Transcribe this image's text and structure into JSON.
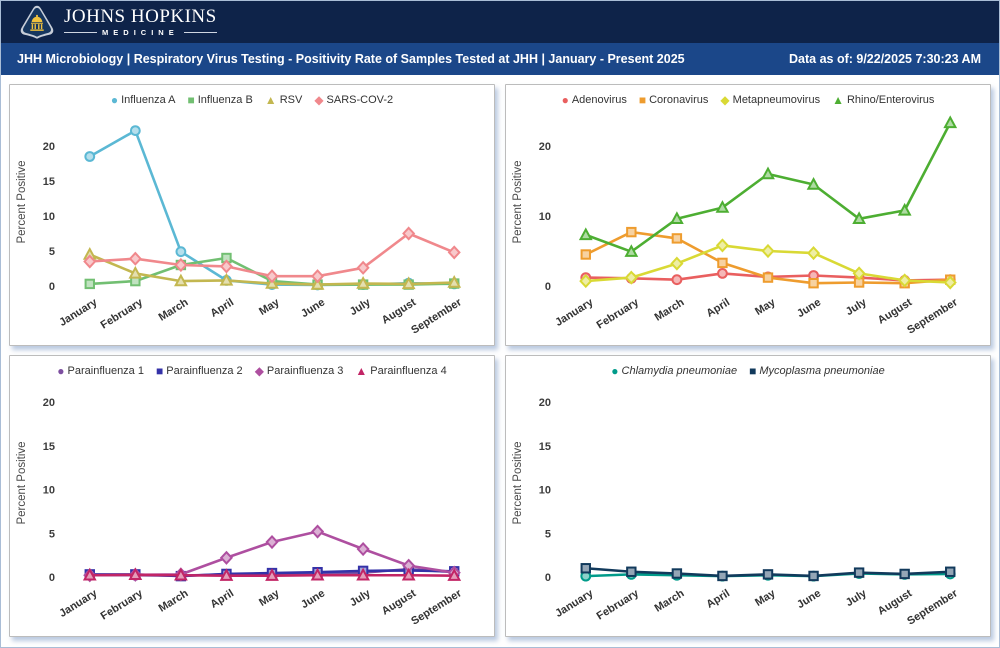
{
  "header": {
    "brand_line1": "JOHNS HOPKINS",
    "brand_line2": "MEDICINE",
    "title": "JHH Microbiology | Respiratory Virus Testing - Positivity Rate of Samples Tested at JHH | January - Present 2025",
    "data_as_of": "Data as of: 9/22/2025 7:30:23 AM",
    "colors": {
      "topbar": "#0e2349",
      "titlebar": "#1b4789",
      "logo_gold": "#f0c23e",
      "logo_navy": "#16365f",
      "logo_silver": "#c7cdd8"
    }
  },
  "chart_data": [
    {
      "type": "line",
      "title": "",
      "ylabel": "Percent Positive",
      "categories": [
        "January",
        "February",
        "March",
        "April",
        "May",
        "June",
        "July",
        "August",
        "September"
      ],
      "yticks": [
        0,
        5,
        10,
        15,
        20
      ],
      "ymax": 24,
      "legend_italic": false,
      "legend_position": "top",
      "grid": false,
      "series": [
        {
          "name": "Influenza A",
          "marker": "circle",
          "color": "#5bb8d4",
          "values": [
            18.5,
            22.2,
            4.9,
            0.8,
            0.2,
            0.15,
            0.2,
            0.4,
            0.3
          ]
        },
        {
          "name": "Influenza B",
          "marker": "square",
          "color": "#72bf72",
          "values": [
            0.3,
            0.7,
            3.0,
            4.0,
            0.7,
            0.2,
            0.2,
            0.2,
            0.35
          ]
        },
        {
          "name": "RSV",
          "marker": "triangle",
          "color": "#c3b750",
          "values": [
            4.5,
            1.8,
            0.7,
            0.8,
            0.35,
            0.2,
            0.35,
            0.3,
            0.5
          ]
        },
        {
          "name": "SARS-COV-2",
          "marker": "diamond",
          "color": "#f0888c",
          "values": [
            3.5,
            3.9,
            3.0,
            2.8,
            1.4,
            1.4,
            2.6,
            7.5,
            4.8
          ]
        }
      ]
    },
    {
      "type": "line",
      "title": "",
      "ylabel": "Percent Positive",
      "categories": [
        "January",
        "February",
        "March",
        "April",
        "May",
        "June",
        "July",
        "August",
        "September"
      ],
      "yticks": [
        0,
        10,
        20
      ],
      "ymax": 24,
      "legend_italic": false,
      "legend_position": "top",
      "grid": false,
      "series": [
        {
          "name": "Adenovirus",
          "marker": "circle",
          "color": "#e95f5f",
          "values": [
            1.2,
            1.1,
            0.9,
            1.8,
            1.3,
            1.5,
            1.2,
            0.8,
            0.9
          ]
        },
        {
          "name": "Coronavirus",
          "marker": "square",
          "color": "#ee9c2e",
          "values": [
            4.5,
            7.7,
            6.8,
            3.3,
            1.2,
            0.4,
            0.5,
            0.4,
            0.9
          ]
        },
        {
          "name": "Metapneumovirus",
          "marker": "diamond",
          "color": "#d9d935",
          "values": [
            0.7,
            1.2,
            3.2,
            5.8,
            5.0,
            4.7,
            1.8,
            0.8,
            0.5
          ]
        },
        {
          "name": "Rhino/Enterovirus",
          "marker": "triangle",
          "color": "#4dae32",
          "values": [
            7.3,
            4.9,
            9.6,
            11.2,
            16.0,
            14.5,
            9.6,
            10.8,
            23.3
          ]
        }
      ]
    },
    {
      "type": "line",
      "title": "",
      "ylabel": "Percent Positive",
      "categories": [
        "January",
        "February",
        "March",
        "April",
        "May",
        "June",
        "July",
        "August",
        "September"
      ],
      "yticks": [
        0,
        5,
        10,
        15,
        20
      ],
      "ymax": 21.5,
      "legend_italic": false,
      "legend_position": "top",
      "grid": false,
      "series": [
        {
          "name": "Parainfluenza 1",
          "marker": "circle",
          "color": "#7d4fa0",
          "values": [
            0.2,
            0.2,
            0.15,
            0.3,
            0.3,
            0.4,
            0.5,
            0.9,
            0.55
          ]
        },
        {
          "name": "Parainfluenza 2",
          "marker": "square",
          "color": "#3432a8",
          "values": [
            0.3,
            0.3,
            0.1,
            0.35,
            0.45,
            0.55,
            0.7,
            0.75,
            0.65
          ]
        },
        {
          "name": "Parainfluenza 3",
          "marker": "diamond",
          "color": "#ae4fa0",
          "values": [
            0.2,
            0.25,
            0.3,
            2.2,
            4.0,
            5.2,
            3.2,
            1.3,
            0.5
          ]
        },
        {
          "name": "Parainfluenza 4",
          "marker": "triangle",
          "color": "#c22566",
          "values": [
            0.2,
            0.25,
            0.2,
            0.15,
            0.15,
            0.2,
            0.2,
            0.2,
            0.15
          ]
        }
      ]
    },
    {
      "type": "line",
      "title": "",
      "ylabel": "Percent Positive",
      "categories": [
        "January",
        "February",
        "March",
        "April",
        "May",
        "June",
        "July",
        "August",
        "September"
      ],
      "yticks": [
        0,
        5,
        10,
        15,
        20
      ],
      "ymax": 21.5,
      "legend_italic": true,
      "legend_position": "top",
      "grid": false,
      "series": [
        {
          "name": "Chlamydia pneumoniae",
          "marker": "circle",
          "color": "#009b8a",
          "values": [
            0.1,
            0.3,
            0.2,
            0.1,
            0.2,
            0.1,
            0.4,
            0.3,
            0.35
          ]
        },
        {
          "name": "Mycoplasma pneumoniae",
          "marker": "square",
          "color": "#123a5c",
          "values": [
            1.0,
            0.6,
            0.4,
            0.12,
            0.3,
            0.12,
            0.5,
            0.35,
            0.6
          ]
        }
      ]
    }
  ]
}
